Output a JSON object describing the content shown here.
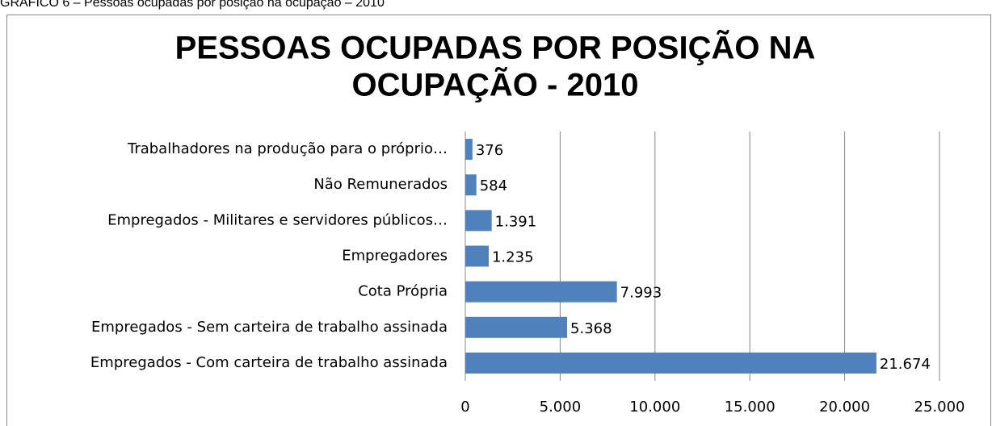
{
  "chart_data": {
    "type": "hbar",
    "caption": "GRÁFICO 6 – Pessoas ocupadas por posição na ocupação – 2010",
    "title": [
      "PESSOAS OCUPADAS POR POSIÇÃO NA",
      "OCUPAÇÃO - 2010"
    ],
    "categories": [
      "Trabalhadores na produção para o próprio…",
      "Não Remunerados",
      "Empregados - Militares e servidores públicos…",
      "Empregadores",
      "Cota Própria",
      "Empregados - Sem carteira de trabalho assinada",
      "Empregados - Com carteira de trabalho assinada"
    ],
    "values": [
      376,
      584,
      1391,
      1235,
      7993,
      5368,
      21674
    ],
    "value_labels": [
      "376",
      "584",
      "1.391",
      "1.235",
      "7.993",
      "5.368",
      "21.674"
    ],
    "color": "#4f81bd",
    "xlim": [
      0,
      25000
    ],
    "xticks": [
      0,
      {
        "value": 5000,
        "label": "5.000"
      },
      {
        "value": 10000,
        "label": "10.000"
      },
      {
        "value": 15000,
        "label": "15.000"
      },
      {
        "value": 20000,
        "label": "20.000"
      },
      {
        "value": 25000,
        "label": "25.000"
      }
    ],
    "grid": true
  }
}
